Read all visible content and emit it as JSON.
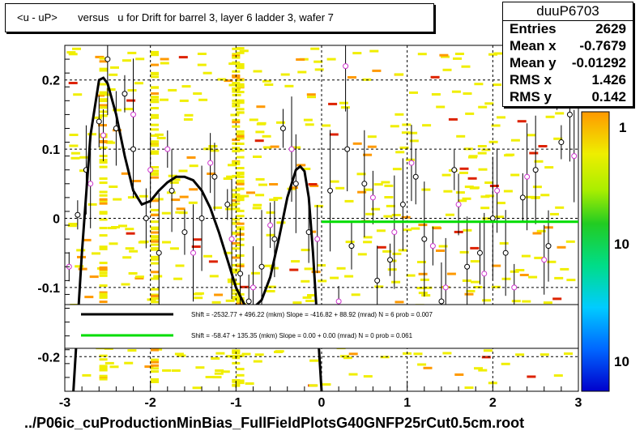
{
  "title": "<u - uP>       versus   u for Drift for barrel 3, layer 6 ladder 3, wafer 7",
  "stats": {
    "name": "duuP6703",
    "rows": [
      {
        "label": "Entries",
        "value": "2629"
      },
      {
        "label": "Mean x",
        "value": "-0.7679"
      },
      {
        "label": "Mean y",
        "value": "-0.01292"
      },
      {
        "label": "RMS x",
        "value": "1.426"
      },
      {
        "label": "RMS y",
        "value": "0.142"
      }
    ]
  },
  "footer": "../P06ic_cuProductionMinBias_FullFieldPlotsG40GNFP25rCut0.5cm.root",
  "colors": {
    "fit_line": "#000000",
    "flat_line": "#00dd00",
    "open_marker_a": "#000000",
    "open_marker_b": "#cc33cc",
    "cell_yellow": "#f0ee00",
    "cell_orange": "#ff9900",
    "cell_red": "#dd2200"
  },
  "chart_data": {
    "type": "scatter",
    "xlim": [
      -3,
      3
    ],
    "ylim": [
      -0.25,
      0.25
    ],
    "x_ticks": [
      "-3",
      "-2",
      "-1",
      "0",
      "1",
      "2",
      "3"
    ],
    "y_ticks": [
      "-0.2",
      "-0.1",
      "0",
      "0.1",
      "0.2"
    ],
    "x_tick_values": [
      -3,
      -2,
      -1,
      0,
      1,
      2,
      3
    ],
    "y_tick_values": [
      -0.2,
      -0.1,
      0,
      0.1,
      0.2
    ],
    "palette_labels": [
      "1",
      "10",
      "10"
    ],
    "legend": {
      "placement": "lower-center",
      "entries": [
        {
          "text": "Shift =  -2532.77 + 496.22 (mkm) Slope =   -416.82 + 88.92 (mrad)  N = 6 prob = 0.007"
        },
        {
          "text": "Shift =    -58.47 + 135.35 (mkm) Slope =     0.00 + 0.00 (mrad)  N = 0 prob = 0.061"
        }
      ]
    },
    "fit_curve": {
      "x": [
        -2.9,
        -2.8,
        -2.7,
        -2.6,
        -2.55,
        -2.5,
        -2.4,
        -2.3,
        -2.2,
        -2.1,
        -2.0,
        -1.9,
        -1.8,
        -1.7,
        -1.6,
        -1.5,
        -1.4,
        -1.3,
        -1.2,
        -1.1,
        -1.0,
        -0.9,
        -0.8,
        -0.7,
        -0.6,
        -0.5,
        -0.4,
        -0.3,
        -0.25,
        -0.2,
        -0.15,
        -0.1,
        -0.05,
        0.0
      ],
      "y": [
        -0.25,
        -0.05,
        0.12,
        0.2,
        0.203,
        0.195,
        0.15,
        0.09,
        0.04,
        0.02,
        0.025,
        0.04,
        0.052,
        0.06,
        0.06,
        0.055,
        0.04,
        0.015,
        -0.02,
        -0.06,
        -0.1,
        -0.125,
        -0.13,
        -0.118,
        -0.085,
        -0.03,
        0.03,
        0.07,
        0.075,
        0.068,
        0.03,
        -0.05,
        -0.15,
        -0.25
      ]
    },
    "flat_line": {
      "x": [
        0.0,
        3.0
      ],
      "y": [
        -0.005,
        -0.005
      ]
    },
    "points_black": [
      {
        "x": -2.85,
        "y": 0.005
      },
      {
        "x": -2.75,
        "y": 0.07
      },
      {
        "x": -2.6,
        "y": 0.14
      },
      {
        "x": -2.5,
        "y": 0.23
      },
      {
        "x": -2.4,
        "y": 0.13
      },
      {
        "x": -2.3,
        "y": 0.18
      },
      {
        "x": -2.2,
        "y": 0.1
      },
      {
        "x": -2.05,
        "y": 0.0
      },
      {
        "x": -1.9,
        "y": -0.05
      },
      {
        "x": -1.75,
        "y": 0.04
      },
      {
        "x": -1.6,
        "y": -0.02
      },
      {
        "x": -1.4,
        "y": 0.0
      },
      {
        "x": -1.25,
        "y": 0.06
      },
      {
        "x": -1.1,
        "y": 0.02
      },
      {
        "x": -0.95,
        "y": -0.08
      },
      {
        "x": -0.85,
        "y": -0.12
      },
      {
        "x": -0.7,
        "y": -0.07
      },
      {
        "x": -0.55,
        "y": -0.03
      },
      {
        "x": -0.45,
        "y": 0.13
      },
      {
        "x": -0.3,
        "y": 0.05
      },
      {
        "x": -0.15,
        "y": -0.02
      },
      {
        "x": 0.1,
        "y": 0.04
      },
      {
        "x": 0.3,
        "y": 0.1
      },
      {
        "x": 0.35,
        "y": -0.04
      },
      {
        "x": 0.5,
        "y": 0.05
      },
      {
        "x": 0.65,
        "y": -0.09
      },
      {
        "x": 0.8,
        "y": -0.06
      },
      {
        "x": 0.95,
        "y": 0.02
      },
      {
        "x": 1.1,
        "y": 0.06
      },
      {
        "x": 1.2,
        "y": -0.03
      },
      {
        "x": 1.4,
        "y": -0.12
      },
      {
        "x": 1.55,
        "y": 0.07
      },
      {
        "x": 1.7,
        "y": -0.07
      },
      {
        "x": 1.85,
        "y": -0.05
      },
      {
        "x": 2.0,
        "y": 0.0
      },
      {
        "x": 2.15,
        "y": -0.05
      },
      {
        "x": 2.35,
        "y": 0.03
      },
      {
        "x": 2.5,
        "y": 0.07
      },
      {
        "x": 2.65,
        "y": -0.04
      },
      {
        "x": 2.8,
        "y": 0.11
      },
      {
        "x": 2.9,
        "y": 0.15
      }
    ],
    "points_magenta": [
      {
        "x": -2.95,
        "y": -0.07
      },
      {
        "x": -2.7,
        "y": 0.05
      },
      {
        "x": -2.55,
        "y": 0.12
      },
      {
        "x": -2.2,
        "y": 0.15
      },
      {
        "x": -2.0,
        "y": 0.07
      },
      {
        "x": -1.8,
        "y": 0.1
      },
      {
        "x": -1.5,
        "y": -0.05
      },
      {
        "x": -1.3,
        "y": 0.08
      },
      {
        "x": -1.05,
        "y": -0.03
      },
      {
        "x": -0.8,
        "y": -0.1
      },
      {
        "x": -0.6,
        "y": -0.01
      },
      {
        "x": -0.35,
        "y": 0.1
      },
      {
        "x": -0.05,
        "y": -0.03
      },
      {
        "x": 0.2,
        "y": -0.12
      },
      {
        "x": 0.28,
        "y": 0.22
      },
      {
        "x": 0.6,
        "y": 0.03
      },
      {
        "x": 0.85,
        "y": -0.02
      },
      {
        "x": 1.05,
        "y": 0.08
      },
      {
        "x": 1.3,
        "y": -0.04
      },
      {
        "x": 1.45,
        "y": -0.1
      },
      {
        "x": 1.6,
        "y": 0.02
      },
      {
        "x": 1.9,
        "y": -0.08
      },
      {
        "x": 2.05,
        "y": 0.04
      },
      {
        "x": 2.25,
        "y": -0.1
      },
      {
        "x": 2.4,
        "y": 0.06
      },
      {
        "x": 2.6,
        "y": -0.06
      },
      {
        "x": 2.75,
        "y": 0.18
      },
      {
        "x": 2.95,
        "y": 0.09
      }
    ]
  }
}
